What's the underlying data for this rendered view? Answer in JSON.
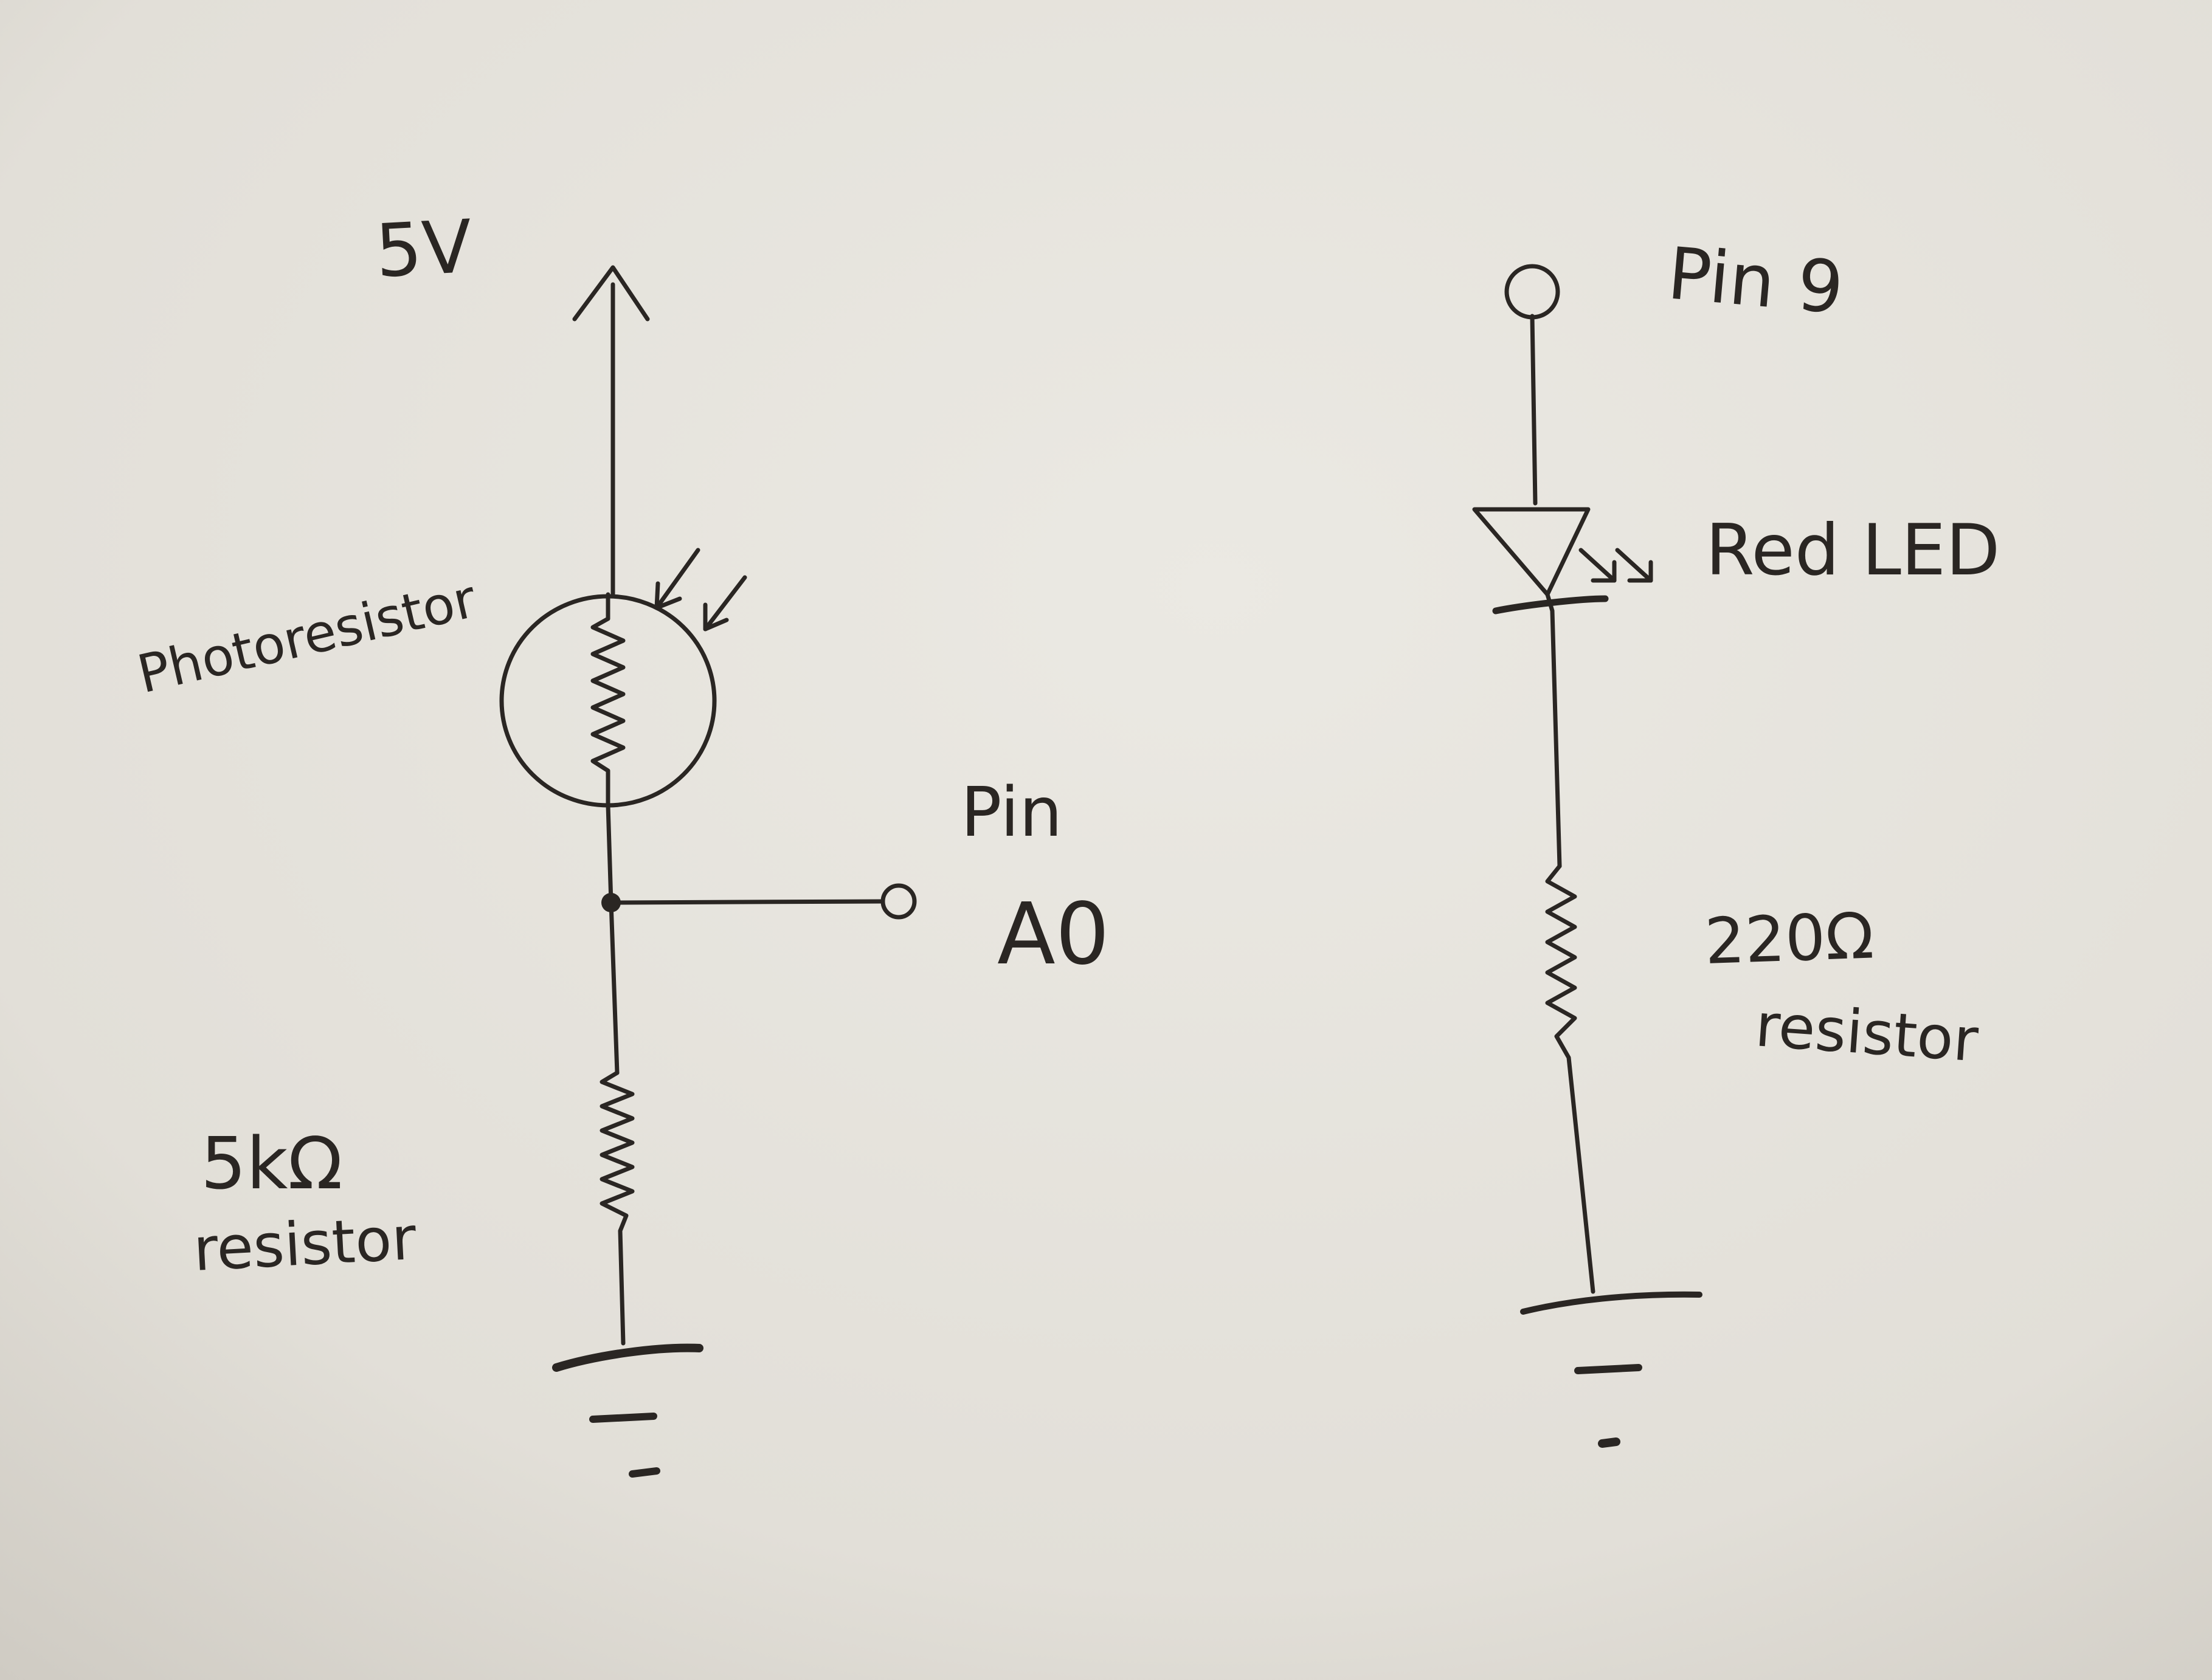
{
  "labels": {
    "supply": "5V",
    "photoresistor": "Photoresistor",
    "pin_a0_word": "Pin",
    "pin_a0_name": "A0",
    "resistor_5k_value": "5kΩ",
    "resistor_5k_word": "resistor",
    "pin9": "Pin 9",
    "led": "Red LED",
    "resistor_220_value": "220Ω",
    "resistor_220_word": "resistor"
  },
  "colors": {
    "paper": "#e6e3dc",
    "ink": "#2a2623"
  }
}
